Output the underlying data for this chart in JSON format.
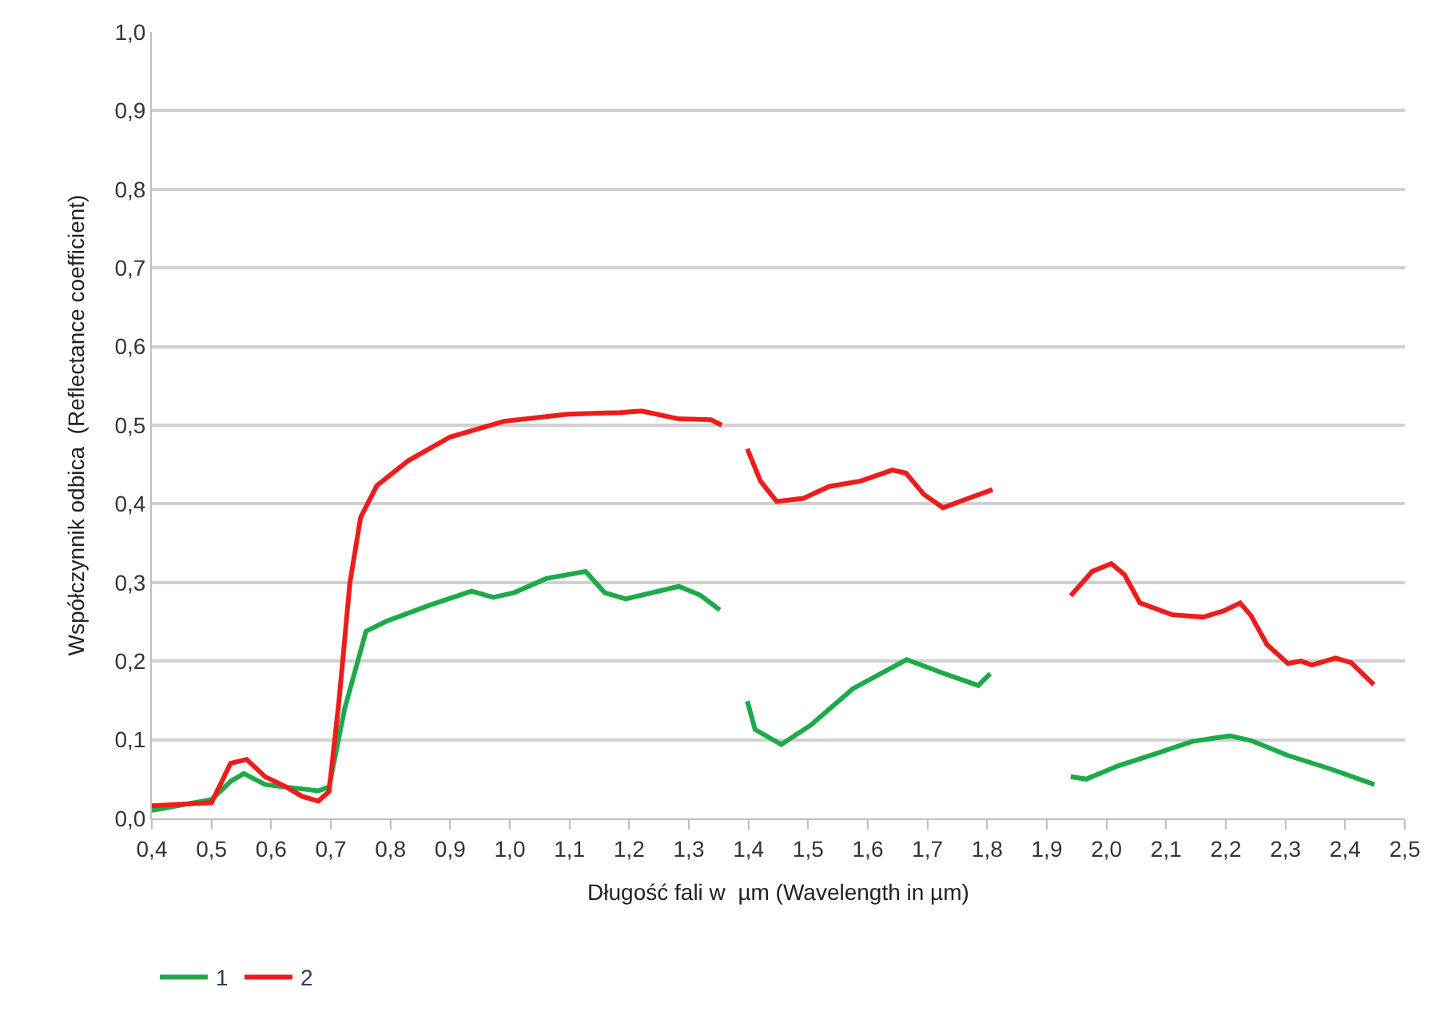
{
  "chart_data": {
    "type": "line",
    "xlabel": "Długość fali w  µm (Wavelength in µm)",
    "ylabel": "Współczynnik odbica  (Reflectance coefficient)",
    "series": [
      {
        "name": "1",
        "color": "#1faa4a",
        "x": [
          0.4,
          0.5,
          0.532,
          0.554,
          0.59,
          0.634,
          0.679,
          0.697,
          0.723,
          0.759,
          0.794,
          0.865,
          0.936,
          0.972,
          1.007,
          1.061,
          1.127,
          1.159,
          1.194,
          1.283,
          1.319,
          1.352,
          null,
          1.398,
          1.411,
          1.455,
          1.505,
          1.575,
          1.665,
          1.725,
          1.785,
          1.805,
          null,
          1.94,
          1.966,
          2.02,
          2.073,
          2.144,
          2.207,
          2.242,
          2.304,
          2.375,
          2.449
        ],
        "values": [
          0.01,
          0.024,
          0.047,
          0.057,
          0.043,
          0.039,
          0.035,
          0.04,
          0.139,
          0.238,
          0.251,
          0.271,
          0.289,
          0.281,
          0.287,
          0.305,
          0.314,
          0.287,
          0.279,
          0.295,
          0.284,
          0.265,
          null,
          0.149,
          0.113,
          0.094,
          0.119,
          0.165,
          0.202,
          0.185,
          0.169,
          0.184,
          null,
          0.053,
          0.05,
          0.067,
          0.08,
          0.098,
          0.105,
          0.099,
          0.08,
          0.063,
          0.043
        ]
      },
      {
        "name": "2",
        "color": "#ee1c1c",
        "x": [
          0.4,
          0.5,
          0.532,
          0.559,
          0.59,
          0.625,
          0.652,
          0.679,
          0.697,
          0.714,
          0.732,
          0.75,
          0.777,
          0.83,
          0.9,
          0.99,
          1.097,
          1.185,
          1.221,
          1.283,
          1.337,
          1.355,
          null,
          1.398,
          1.42,
          1.447,
          1.492,
          1.535,
          1.588,
          1.641,
          1.664,
          1.694,
          1.726,
          1.765,
          1.809,
          null,
          1.94,
          1.976,
          2.008,
          2.03,
          2.056,
          2.11,
          2.162,
          2.197,
          2.224,
          2.242,
          2.269,
          2.304,
          2.326,
          2.344,
          2.384,
          2.41,
          2.448
        ],
        "values": [
          0.016,
          0.02,
          0.07,
          0.075,
          0.053,
          0.04,
          0.028,
          0.022,
          0.034,
          0.152,
          0.3,
          0.383,
          0.423,
          0.455,
          0.485,
          0.505,
          0.514,
          0.516,
          0.518,
          0.508,
          0.507,
          0.5,
          null,
          0.47,
          0.429,
          0.403,
          0.407,
          0.422,
          0.429,
          0.443,
          0.439,
          0.412,
          0.395,
          0.406,
          0.418,
          null,
          0.283,
          0.314,
          0.324,
          0.31,
          0.274,
          0.259,
          0.256,
          0.264,
          0.274,
          0.258,
          0.221,
          0.197,
          0.2,
          0.195,
          0.204,
          0.198,
          0.17
        ]
      }
    ],
    "xlim": [
      0.4,
      2.5
    ],
    "xticks": [
      {
        "value": 0.4,
        "label": "0,4"
      },
      {
        "value": 0.5,
        "label": "0,5"
      },
      {
        "value": 0.6,
        "label": "0,6"
      },
      {
        "value": 0.7,
        "label": "0,7"
      },
      {
        "value": 0.8,
        "label": "0,8"
      },
      {
        "value": 0.9,
        "label": "0,9"
      },
      {
        "value": 1.0,
        "label": "1,0"
      },
      {
        "value": 1.1,
        "label": "1,1"
      },
      {
        "value": 1.2,
        "label": "1,2"
      },
      {
        "value": 1.3,
        "label": "1,3"
      },
      {
        "value": 1.4,
        "label": "1,4"
      },
      {
        "value": 1.5,
        "label": "1,5"
      },
      {
        "value": 1.6,
        "label": "1,6"
      },
      {
        "value": 1.7,
        "label": "1,7"
      },
      {
        "value": 1.8,
        "label": "1,8"
      },
      {
        "value": 1.9,
        "label": "1,9"
      },
      {
        "value": 2.0,
        "label": "2,0"
      },
      {
        "value": 2.1,
        "label": "2,1"
      },
      {
        "value": 2.2,
        "label": "2,2"
      },
      {
        "value": 2.3,
        "label": "2,3"
      },
      {
        "value": 2.4,
        "label": "2,4"
      },
      {
        "value": 2.5,
        "label": "2,5"
      }
    ],
    "ylim": [
      0,
      1.0
    ],
    "yticks": [
      {
        "value": 0,
        "label": "0,0"
      },
      {
        "value": 0.1,
        "label": "0,1"
      },
      {
        "value": 0.2,
        "label": "0,2"
      },
      {
        "value": 0.3,
        "label": "0,3"
      },
      {
        "value": 0.4,
        "label": "0,4"
      },
      {
        "value": 0.5,
        "label": "0,5"
      },
      {
        "value": 0.6,
        "label": "0,6"
      },
      {
        "value": 0.7,
        "label": "0,7"
      },
      {
        "value": 0.8,
        "label": "0,8"
      },
      {
        "value": 0.9,
        "label": "0,9"
      },
      {
        "value": 1.0,
        "label": "1,0"
      }
    ],
    "grid": "y",
    "legend": "bottom left",
    "marker": "none",
    "line_style": "solid"
  }
}
